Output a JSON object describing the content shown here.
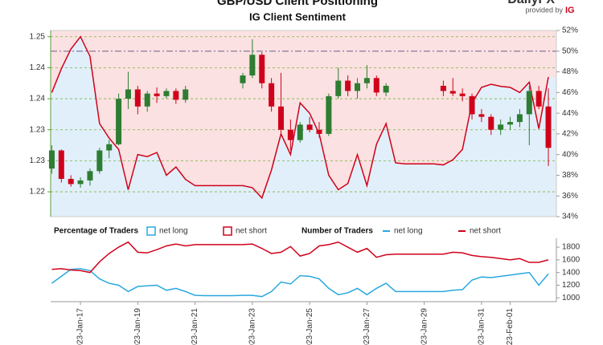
{
  "chart_data": {
    "type": "candlestick",
    "title": "GBP/USD Client Positioning",
    "subtitle": "IG Client Sentiment",
    "branding": {
      "name": "DailyFX",
      "tagline": "provided by",
      "mark": "IG"
    },
    "categories": [
      null,
      null,
      null,
      "2023-Jan-17",
      null,
      null,
      null,
      null,
      null,
      "2023-Jan-19",
      null,
      null,
      null,
      null,
      null,
      "2023-Jan-21",
      null,
      null,
      null,
      null,
      null,
      "2023-Jan-23",
      null,
      null,
      null,
      null,
      null,
      "2023-Jan-25",
      null,
      null,
      null,
      null,
      null,
      "2023-Jan-27",
      null,
      null,
      null,
      null,
      null,
      "2023-Jan-29",
      null,
      null,
      null,
      null,
      null,
      "2023-Jan-31",
      null,
      null,
      "2023-Feb-01",
      null,
      null,
      null,
      null
    ],
    "open": [
      1.2245,
      1.228,
      1.2225,
      1.2215,
      1.2222,
      1.224,
      1.228,
      1.2292,
      1.238,
      1.2398,
      1.2365,
      1.239,
      1.2385,
      1.2395,
      1.2378,
      null,
      null,
      null,
      null,
      null,
      1.241,
      1.2425,
      1.2465,
      1.241,
      1.2365,
      1.232,
      1.23,
      1.233,
      1.232,
      1.2312,
      1.2385,
      1.2415,
      1.2395,
      1.241,
      1.242,
      1.2392,
      null,
      null,
      null,
      null,
      null,
      1.2405,
      1.2395,
      1.239,
      1.2385,
      1.235,
      1.2345,
      1.232,
      1.233,
      1.2335,
      1.235,
      1.2395,
      1.2365
    ],
    "high": [
      1.229,
      1.2282,
      1.2232,
      1.2228,
      1.2245,
      1.2285,
      1.23,
      1.239,
      1.2432,
      1.2405,
      1.2395,
      1.2402,
      1.24,
      1.24,
      1.2405,
      null,
      null,
      null,
      null,
      null,
      1.243,
      1.2495,
      1.247,
      1.242,
      1.243,
      1.234,
      1.2335,
      1.2345,
      1.2335,
      1.239,
      1.244,
      1.2425,
      1.242,
      1.2445,
      1.2425,
      1.241,
      null,
      null,
      null,
      null,
      null,
      1.2415,
      1.242,
      1.24,
      1.239,
      1.236,
      1.235,
      1.234,
      1.2345,
      1.236,
      1.2405,
      1.2405,
      1.24
    ],
    "low": [
      1.2235,
      1.2218,
      1.221,
      1.2208,
      1.2212,
      1.2235,
      1.2265,
      1.229,
      1.236,
      1.235,
      1.2355,
      1.2372,
      1.238,
      1.237,
      1.2372,
      null,
      null,
      null,
      null,
      null,
      1.24,
      1.242,
      1.24,
      1.2355,
      1.231,
      1.228,
      1.2295,
      1.2315,
      1.2305,
      1.2308,
      1.238,
      1.2385,
      1.238,
      1.24,
      1.2385,
      1.2385,
      null,
      null,
      null,
      null,
      null,
      1.2385,
      1.2385,
      1.2375,
      1.234,
      1.2335,
      1.231,
      1.231,
      1.232,
      1.2325,
      1.229,
      1.236,
      1.225
    ],
    "close": [
      1.228,
      1.2225,
      1.2215,
      1.2222,
      1.224,
      1.228,
      1.2292,
      1.238,
      1.2398,
      1.2365,
      1.239,
      1.2385,
      1.2395,
      1.2378,
      1.2398,
      null,
      null,
      null,
      null,
      null,
      1.2425,
      1.2465,
      1.241,
      1.2365,
      1.232,
      1.23,
      1.233,
      1.232,
      1.2312,
      1.2385,
      1.2415,
      1.2395,
      1.241,
      1.242,
      1.2392,
      1.2405,
      null,
      null,
      null,
      null,
      null,
      1.2395,
      1.239,
      1.2385,
      1.235,
      1.2345,
      1.232,
      1.233,
      1.2335,
      1.235,
      1.2395,
      1.2365,
      1.2285
    ],
    "up_color": "#2e7d32",
    "down_color": "#d0021b",
    "ylim": [
      1.2152,
      1.2512
    ],
    "yticks": [
      1.25,
      {
        "value": 1.244,
        "label": "1.24"
      },
      {
        "value": 1.238,
        "label": "1.24"
      },
      {
        "value": 1.232,
        "label": "1.23"
      },
      {
        "value": 1.226,
        "label": "1.23"
      },
      1.22
    ],
    "y2lim": [
      34,
      52
    ],
    "y2ticks": [
      {
        "value": 52,
        "label": "52%"
      },
      {
        "value": 50,
        "label": "50%"
      },
      {
        "value": 48,
        "label": "48%"
      },
      {
        "value": 46,
        "label": "46%"
      },
      {
        "value": 44,
        "label": "44%"
      },
      {
        "value": 42,
        "label": "42%"
      },
      {
        "value": 40,
        "label": "40%"
      },
      {
        "value": 38,
        "label": "38%"
      },
      {
        "value": 36,
        "label": "36%"
      },
      {
        "value": 34,
        "label": "34%"
      }
    ],
    "grid": true,
    "reference_line": 50,
    "sentiment": {
      "axis": "y2",
      "color": "#d0021b",
      "long_fill": "#e1effa",
      "short_fill": "#fbe1e1",
      "values": [
        46,
        48.3,
        50.2,
        51.4,
        49.5,
        43,
        41.6,
        40.5,
        36.6,
        40,
        39.8,
        40.2,
        38,
        38.8,
        37.6,
        37,
        37,
        37,
        37,
        37,
        37,
        36.8,
        35.8,
        38.5,
        42,
        40,
        45,
        44,
        42,
        38,
        36.6,
        37.2,
        40,
        37,
        41,
        43,
        39.2,
        39.1,
        39.1,
        39.1,
        39.1,
        39,
        39.5,
        40.5,
        45,
        46.5,
        46.8,
        46.6,
        46.5,
        46,
        47,
        42.5,
        47.5
      ]
    },
    "percentage_legend": {
      "title": "Percentage of Traders",
      "items": [
        {
          "name": "net long",
          "color": "#29a8e0"
        },
        {
          "name": "net short",
          "color": "#d0021b"
        }
      ]
    },
    "lower": {
      "type": "line",
      "legend_title": "Number of Traders",
      "ylim": [
        940,
        1940
      ],
      "yticks": [
        1800,
        1600,
        1400,
        1200,
        1000
      ],
      "series": [
        {
          "name": "net long",
          "color": "#29a8e0",
          "values": [
            1230,
            1340,
            1450,
            1460,
            1430,
            1300,
            1230,
            1200,
            1100,
            1180,
            1190,
            1200,
            1120,
            1150,
            1100,
            1040,
            1035,
            1035,
            1035,
            1035,
            1040,
            1040,
            1020,
            1100,
            1250,
            1220,
            1350,
            1340,
            1300,
            1150,
            1050,
            1080,
            1150,
            1050,
            1150,
            1230,
            1100,
            1100,
            1100,
            1100,
            1100,
            1100,
            1120,
            1130,
            1280,
            1330,
            1320,
            1340,
            1360,
            1380,
            1400,
            1200,
            1380
          ]
        },
        {
          "name": "net short",
          "color": "#d0021b",
          "values": [
            1450,
            1460,
            1440,
            1430,
            1400,
            1570,
            1700,
            1800,
            1880,
            1720,
            1710,
            1760,
            1820,
            1850,
            1820,
            1840,
            1840,
            1840,
            1840,
            1840,
            1840,
            1850,
            1780,
            1700,
            1720,
            1810,
            1660,
            1700,
            1820,
            1840,
            1880,
            1800,
            1720,
            1780,
            1640,
            1680,
            1690,
            1690,
            1690,
            1690,
            1690,
            1690,
            1720,
            1710,
            1670,
            1650,
            1640,
            1620,
            1600,
            1620,
            1560,
            1560,
            1600
          ]
        }
      ]
    }
  }
}
